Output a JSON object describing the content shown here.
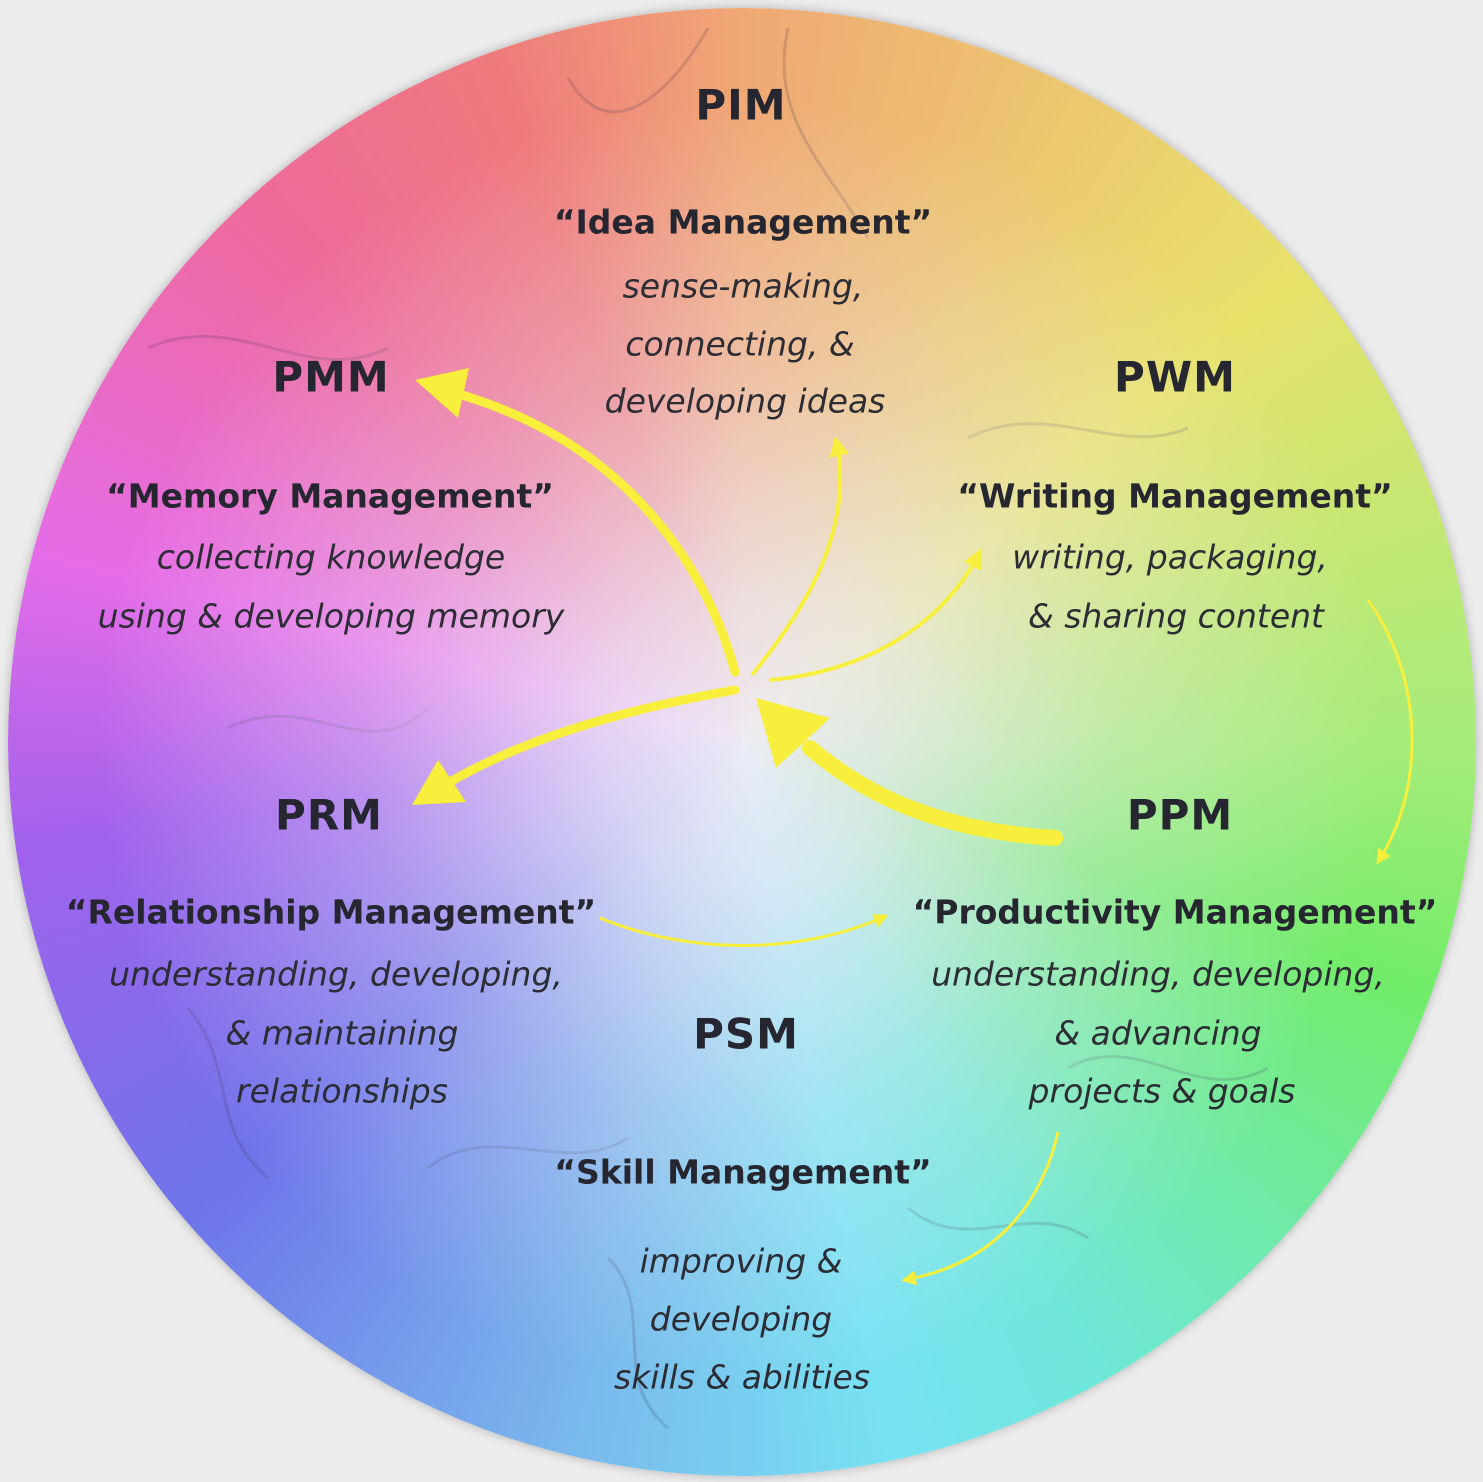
{
  "colors": {
    "arrow": "#f7ef3c",
    "text": "#262630",
    "background": "#ececec"
  },
  "nodes": {
    "pim": {
      "acronym": "PIM",
      "title": "“Idea Management”",
      "lines": [
        "sense-making,",
        "connecting, &",
        "developing ideas"
      ]
    },
    "pmm": {
      "acronym": "PMM",
      "title": "“Memory Management”",
      "lines": [
        "collecting knowledge",
        "using & developing memory"
      ]
    },
    "pwm": {
      "acronym": "PWM",
      "title": "“Writing Management”",
      "lines": [
        "writing, packaging,",
        "& sharing content"
      ]
    },
    "prm": {
      "acronym": "PRM",
      "title": "“Relationship Management”",
      "lines": [
        "understanding, developing,",
        "& maintaining",
        "relationships"
      ]
    },
    "ppm": {
      "acronym": "PPM",
      "title": "“Productivity Management”",
      "lines": [
        "understanding, developing,",
        "& advancing",
        "projects & goals"
      ]
    },
    "psm": {
      "acronym": "PSM",
      "title": "“Skill Management”",
      "lines": [
        "improving &",
        "developing",
        "skills & abilities"
      ]
    }
  }
}
